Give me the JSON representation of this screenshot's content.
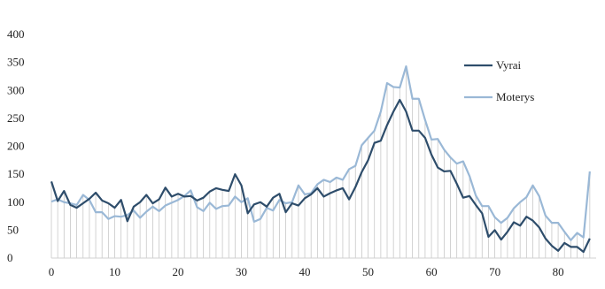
{
  "chart_data": {
    "type": "line",
    "title": "",
    "xlabel": "",
    "ylabel": "",
    "xlim": [
      0,
      86
    ],
    "ylim": [
      0,
      400
    ],
    "x_ticks": [
      0,
      10,
      20,
      30,
      40,
      50,
      60,
      70,
      80
    ],
    "y_ticks": [
      0,
      50,
      100,
      150,
      200,
      250,
      300,
      350,
      400
    ],
    "grid": false,
    "background": "vertical hairlines under the series",
    "legend": "right",
    "series": [
      {
        "name": "Vyrai",
        "color": "#2e4d6b",
        "values": [
          137,
          102,
          120,
          95,
          90,
          98,
          106,
          117,
          103,
          98,
          90,
          104,
          66,
          92,
          100,
          113,
          98,
          105,
          126,
          110,
          115,
          110,
          111,
          103,
          108,
          119,
          125,
          122,
          120,
          150,
          130,
          80,
          96,
          100,
          92,
          108,
          115,
          82,
          98,
          94,
          107,
          114,
          125,
          110,
          116,
          121,
          125,
          105,
          127,
          154,
          175,
          206,
          210,
          238,
          262,
          283,
          262,
          228,
          228,
          215,
          185,
          162,
          155,
          156,
          133,
          108,
          111,
          95,
          80,
          38,
          50,
          33,
          47,
          64,
          58,
          74,
          67,
          55,
          35,
          22,
          13,
          27,
          20,
          20,
          11,
          35
        ]
      },
      {
        "name": "Moterys",
        "color": "#9ab8d6",
        "values": [
          101,
          105,
          100,
          98,
          95,
          113,
          104,
          82,
          82,
          70,
          75,
          74,
          77,
          85,
          72,
          83,
          92,
          84,
          94,
          99,
          104,
          111,
          121,
          91,
          84,
          99,
          88,
          93,
          94,
          110,
          100,
          107,
          65,
          70,
          90,
          85,
          104,
          98,
          100,
          130,
          114,
          116,
          132,
          140,
          136,
          144,
          140,
          159,
          165,
          202,
          215,
          228,
          262,
          313,
          306,
          305,
          343,
          285,
          285,
          247,
          212,
          213,
          194,
          180,
          169,
          173,
          147,
          112,
          93,
          93,
          73,
          63,
          72,
          89,
          100,
          109,
          130,
          111,
          76,
          63,
          63,
          47,
          32,
          45,
          37,
          155
        ]
      }
    ]
  }
}
